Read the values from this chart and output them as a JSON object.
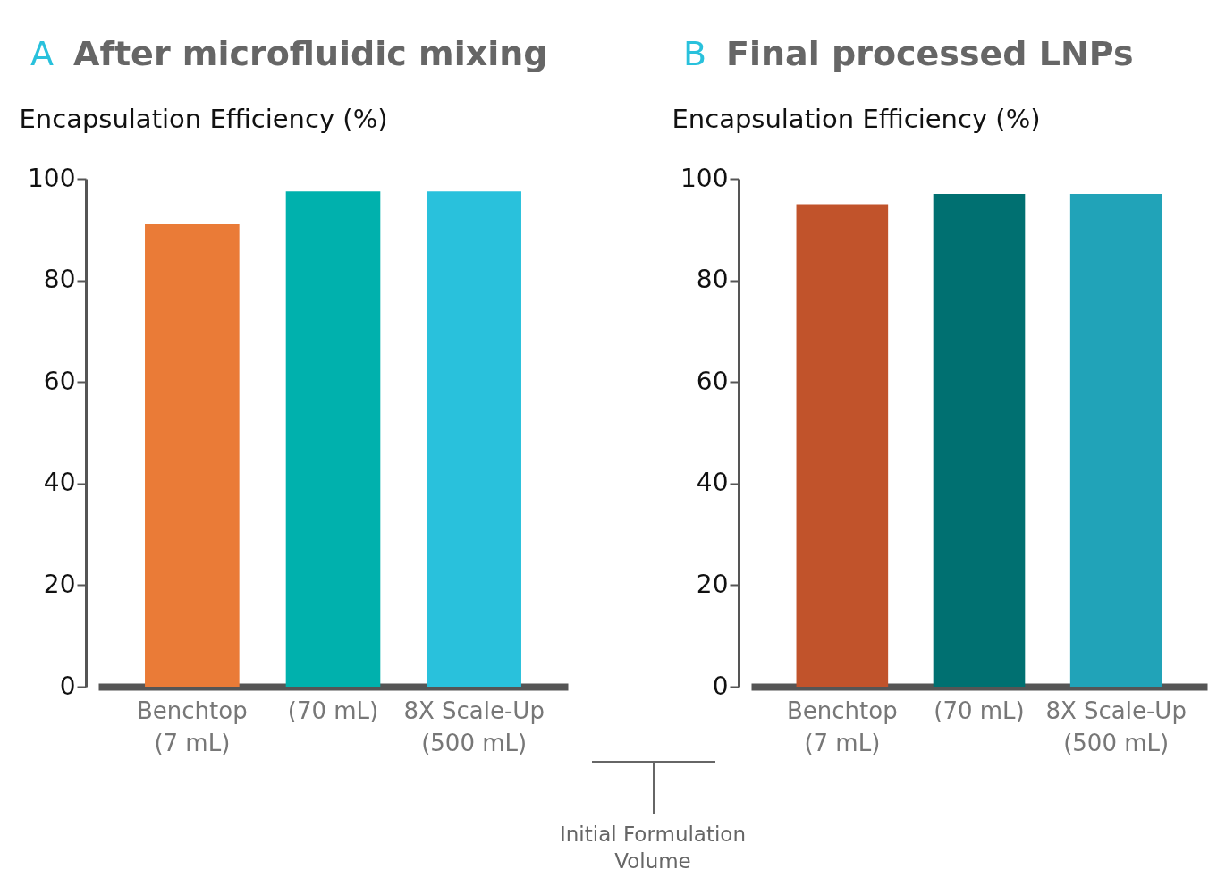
{
  "chart_data": [
    {
      "type": "bar",
      "title": "After microfluidic mixing",
      "annotations": [
        "A",
        "Initial Formulation Volume"
      ],
      "ylabel": "Encapsulation Efficiency (%)",
      "categories": [
        "Benchtop\n(7 mL)",
        "(70 mL)",
        "8X Scale-Up\n(500 mL)"
      ],
      "values": [
        91,
        97.5,
        97.5
      ],
      "colors": [
        "#ea7b37",
        "#00b1ad",
        "#29c1dc"
      ],
      "ylim": [
        0,
        100
      ],
      "yticks": [
        0,
        20,
        40,
        60,
        80,
        100
      ],
      "grid": false
    },
    {
      "type": "bar",
      "title": "Final processed LNPs",
      "annotations": [
        "B"
      ],
      "ylabel": "Encapsulation Efficiency (%)",
      "categories": [
        "Benchtop\n(7 mL)",
        "(70 mL)",
        "8X Scale-Up\n(500 mL)"
      ],
      "values": [
        95,
        97,
        97
      ],
      "colors": [
        "#c1532b",
        "#007071",
        "#21a3b8"
      ],
      "ylim": [
        0,
        100
      ],
      "yticks": [
        0,
        20,
        40,
        60,
        80,
        100
      ],
      "grid": false
    }
  ]
}
